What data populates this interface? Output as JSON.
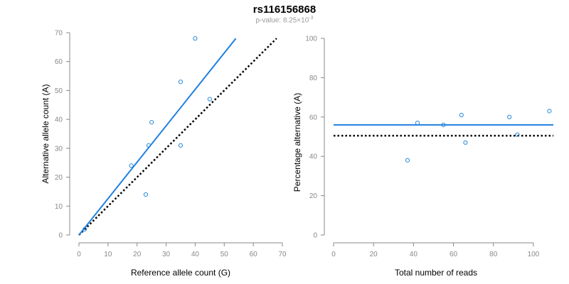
{
  "title": "rs116156868",
  "subtitle": {
    "prefix": "p-value: 8.25×10",
    "exponent": "-3"
  },
  "colors": {
    "series": "#2a8ad8",
    "fit_line": "#1f7fe0",
    "reference_line": "#000000",
    "axis": "#888888"
  },
  "chart_data": [
    {
      "type": "scatter",
      "xlabel": "Reference allele count (G)",
      "ylabel": "Alternative allele count (A)",
      "xlim": [
        0,
        70
      ],
      "ylim": [
        0,
        70
      ],
      "xticks": [
        0,
        10,
        20,
        30,
        40,
        50,
        60,
        70
      ],
      "yticks": [
        0,
        10,
        20,
        30,
        40,
        50,
        60,
        70
      ],
      "points": [
        {
          "x": 2,
          "y": 2
        },
        {
          "x": 18,
          "y": 24
        },
        {
          "x": 23,
          "y": 14
        },
        {
          "x": 24,
          "y": 31
        },
        {
          "x": 25,
          "y": 39
        },
        {
          "x": 35,
          "y": 53
        },
        {
          "x": 35,
          "y": 31
        },
        {
          "x": 40,
          "y": 68
        },
        {
          "x": 45,
          "y": 47
        }
      ],
      "fit_line": {
        "x1": 0,
        "y1": 0,
        "x2": 54,
        "y2": 68
      },
      "reference_line": {
        "x1": 0,
        "y1": 0,
        "x2": 68,
        "y2": 68
      }
    },
    {
      "type": "scatter",
      "xlabel": "Total number of reads",
      "ylabel": "Percentage alternative (A)",
      "xlim": [
        0,
        110
      ],
      "ylim": [
        0,
        100
      ],
      "xticks": [
        0,
        20,
        40,
        60,
        80,
        100
      ],
      "yticks": [
        0,
        20,
        40,
        60,
        80,
        100
      ],
      "points": [
        {
          "x": 37,
          "y": 38
        },
        {
          "x": 42,
          "y": 57
        },
        {
          "x": 55,
          "y": 56
        },
        {
          "x": 64,
          "y": 61
        },
        {
          "x": 66,
          "y": 47
        },
        {
          "x": 88,
          "y": 60
        },
        {
          "x": 92,
          "y": 51
        },
        {
          "x": 108,
          "y": 63
        }
      ],
      "fit_line": {
        "x1": 0,
        "y1": 56,
        "x2": 110,
        "y2": 56
      },
      "reference_line": {
        "x1": 0,
        "y1": 50.5,
        "x2": 110,
        "y2": 50.5
      }
    }
  ]
}
